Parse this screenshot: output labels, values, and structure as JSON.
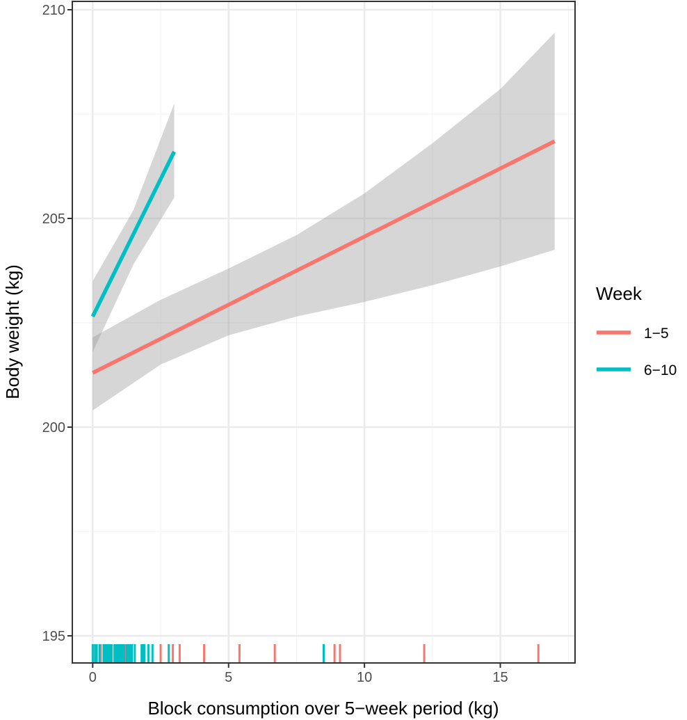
{
  "chart_data": {
    "type": "line",
    "title": "",
    "xlabel": "Block consumption over 5−week period (kg)",
    "ylabel": "Body weight (kg)",
    "xlim": [
      -0.75,
      17.75
    ],
    "ylim": [
      194.35,
      210.2
    ],
    "x_ticks": [
      0,
      5,
      10,
      15
    ],
    "x_tick_labels": [
      "0",
      "5",
      "10",
      "15"
    ],
    "x_minor_ticks": [
      2.5,
      7.5,
      12.5,
      17.5
    ],
    "y_ticks": [
      195,
      200,
      205,
      210
    ],
    "y_tick_labels": [
      "195",
      "200",
      "205",
      "210"
    ],
    "y_minor_ticks": [
      197.5,
      202.5,
      207.5
    ],
    "grid": true,
    "legend": {
      "title": "Week",
      "position": "right",
      "entries": [
        {
          "label": "1−5",
          "color": "#F8766D"
        },
        {
          "label": "6−10",
          "color": "#00BFC4"
        }
      ]
    },
    "series": [
      {
        "name": "1−5",
        "color": "#F8766D",
        "fit_x": [
          0,
          17
        ],
        "fit_y": [
          201.3,
          206.85
        ],
        "band_x": [
          0,
          2.5,
          5,
          7.5,
          10,
          12.5,
          15,
          17
        ],
        "band_lower": [
          200.4,
          201.5,
          202.2,
          202.65,
          203.0,
          203.4,
          203.85,
          204.25
        ],
        "band_upper": [
          202.15,
          203.05,
          203.8,
          204.6,
          205.6,
          206.8,
          208.1,
          209.45
        ],
        "rug_x": [
          0.05,
          0.3,
          0.55,
          1.2,
          2.5,
          2.95,
          3.2,
          4.1,
          5.4,
          6.7,
          8.9,
          9.1,
          12.2,
          16.4
        ]
      },
      {
        "name": "6−10",
        "color": "#00BFC4",
        "fit_x": [
          0,
          3.0
        ],
        "fit_y": [
          202.65,
          206.6
        ],
        "band_x": [
          0,
          1.5,
          3.0
        ],
        "band_lower": [
          201.8,
          203.9,
          205.5
        ],
        "band_upper": [
          203.5,
          205.2,
          207.75
        ],
        "rug_x": [
          0.0,
          0.1,
          0.15,
          0.25,
          0.4,
          0.45,
          0.5,
          0.55,
          0.6,
          0.65,
          0.7,
          0.8,
          0.85,
          0.9,
          0.95,
          1.0,
          1.05,
          1.1,
          1.15,
          1.25,
          1.3,
          1.35,
          1.4,
          1.45,
          1.55,
          1.8,
          1.85,
          1.9,
          2.05,
          2.2,
          2.8,
          8.5
        ]
      }
    ]
  },
  "colors": {
    "panel_border": "#333333",
    "grid_major": "#ebebeb",
    "grid_minor": "#f4f4f4",
    "band_fill": "#999999",
    "tick_mark": "#333333"
  }
}
